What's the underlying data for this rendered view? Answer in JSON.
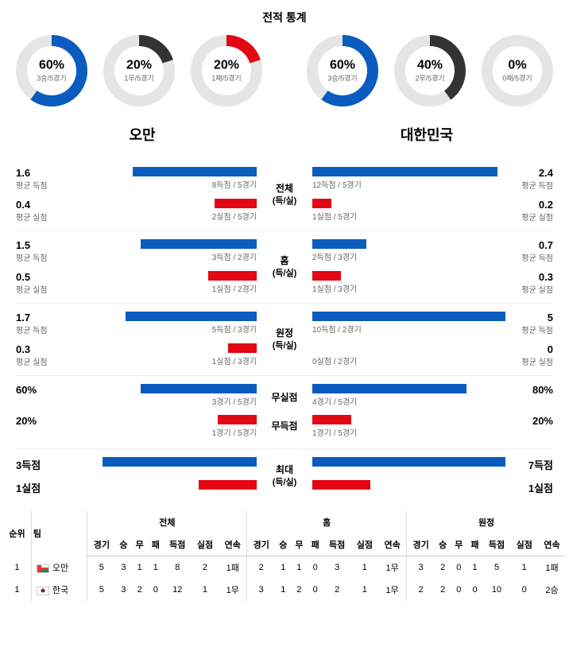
{
  "title": "전적 통계",
  "colors": {
    "win": "#0a5cbf",
    "draw": "#333333",
    "loss": "#e30613",
    "track": "#e5e5e5"
  },
  "donut": {
    "stroke_width": 14,
    "radius": 38
  },
  "left_team": "오만",
  "right_team": "대한민국",
  "left_donuts": [
    {
      "pct": "60%",
      "sub": "3승/5경기",
      "value": 60,
      "color": "#0a5cbf"
    },
    {
      "pct": "20%",
      "sub": "1무/5경기",
      "value": 20,
      "color": "#333333"
    },
    {
      "pct": "20%",
      "sub": "1패/5경기",
      "value": 20,
      "color": "#e30613"
    }
  ],
  "right_donuts": [
    {
      "pct": "60%",
      "sub": "3승/5경기",
      "value": 60,
      "color": "#0a5cbf"
    },
    {
      "pct": "40%",
      "sub": "2무/5경기",
      "value": 40,
      "color": "#333333"
    },
    {
      "pct": "0%",
      "sub": "0패/5경기",
      "value": 0,
      "color": "#e30613"
    }
  ],
  "sections": [
    {
      "mid": [
        "전체",
        "(득/실)"
      ],
      "left": [
        {
          "main": "1.6",
          "label": "평균 득점",
          "caption": "8득점 / 5경기",
          "pct": 64,
          "color": "#0a5cbf"
        },
        {
          "main": "0.4",
          "label": "평균 실점",
          "caption": "2실점 / 5경기",
          "pct": 22,
          "color": "#e30613"
        }
      ],
      "right": [
        {
          "main": "2.4",
          "label": "평균 득점",
          "caption": "12득점 / 5경기",
          "pct": 96,
          "color": "#0a5cbf"
        },
        {
          "main": "0.2",
          "label": "평균 실점",
          "caption": "1실점 / 5경기",
          "pct": 10,
          "color": "#e30613"
        }
      ]
    },
    {
      "mid": [
        "홈",
        "(득/실)"
      ],
      "left": [
        {
          "main": "1.5",
          "label": "평균 득점",
          "caption": "3득점 / 2경기",
          "pct": 60,
          "color": "#0a5cbf"
        },
        {
          "main": "0.5",
          "label": "평균 실점",
          "caption": "1실점 / 2경기",
          "pct": 25,
          "color": "#e30613"
        }
      ],
      "right": [
        {
          "main": "0.7",
          "label": "평균 득점",
          "caption": "2득점 / 3경기",
          "pct": 28,
          "color": "#0a5cbf"
        },
        {
          "main": "0.3",
          "label": "평균 실점",
          "caption": "1실점 / 3경기",
          "pct": 15,
          "color": "#e30613"
        }
      ]
    },
    {
      "mid": [
        "원정",
        "(득/실)"
      ],
      "left": [
        {
          "main": "1.7",
          "label": "평균 득점",
          "caption": "5득점 / 3경기",
          "pct": 68,
          "color": "#0a5cbf"
        },
        {
          "main": "0.3",
          "label": "평균 실점",
          "caption": "1실점 / 3경기",
          "pct": 15,
          "color": "#e30613"
        }
      ],
      "right": [
        {
          "main": "5",
          "label": "평균 득점",
          "caption": "10득점 / 2경기",
          "pct": 100,
          "color": "#0a5cbf"
        },
        {
          "main": "0",
          "label": "평균 실점",
          "caption": "0실점 / 2경기",
          "pct": 0,
          "color": "#e30613"
        }
      ]
    },
    {
      "mid": [
        "무실점",
        "무득점"
      ],
      "mid_per_row": true,
      "left": [
        {
          "main": "60%",
          "label": "",
          "caption": "3경기 / 5경기",
          "pct": 60,
          "color": "#0a5cbf"
        },
        {
          "main": "20%",
          "label": "",
          "caption": "1경기 / 5경기",
          "pct": 20,
          "color": "#e30613"
        }
      ],
      "right": [
        {
          "main": "80%",
          "label": "",
          "caption": "4경기 / 5경기",
          "pct": 80,
          "color": "#0a5cbf"
        },
        {
          "main": "20%",
          "label": "",
          "caption": "1경기 / 5경기",
          "pct": 20,
          "color": "#e30613"
        }
      ]
    },
    {
      "mid": [
        "최대",
        "(득/실)"
      ],
      "left": [
        {
          "main": "3득점",
          "label": "",
          "caption": "",
          "pct": 80,
          "color": "#0a5cbf"
        },
        {
          "main": "1실점",
          "label": "",
          "caption": "",
          "pct": 30,
          "color": "#e30613"
        }
      ],
      "right": [
        {
          "main": "7득점",
          "label": "",
          "caption": "",
          "pct": 100,
          "color": "#0a5cbf"
        },
        {
          "main": "1실점",
          "label": "",
          "caption": "",
          "pct": 30,
          "color": "#e30613"
        }
      ]
    }
  ],
  "table": {
    "header_groups": [
      "전체",
      "홈",
      "원정"
    ],
    "header_row1": [
      "순위",
      "팀"
    ],
    "header_subcols": [
      "경기",
      "승",
      "무",
      "패",
      "득점",
      "실점",
      "연속"
    ],
    "rows": [
      {
        "rank": "1",
        "flag": "oman",
        "team": "오만",
        "all": [
          "5",
          "3",
          "1",
          "1",
          "8",
          "2",
          "1패"
        ],
        "home": [
          "2",
          "1",
          "1",
          "0",
          "3",
          "1",
          "1무"
        ],
        "away": [
          "3",
          "2",
          "0",
          "1",
          "5",
          "1",
          "1패"
        ]
      },
      {
        "rank": "1",
        "flag": "kor",
        "team": "한국",
        "all": [
          "5",
          "3",
          "2",
          "0",
          "12",
          "1",
          "1무"
        ],
        "home": [
          "3",
          "1",
          "2",
          "0",
          "2",
          "1",
          "1무"
        ],
        "away": [
          "2",
          "2",
          "0",
          "0",
          "10",
          "0",
          "2승"
        ]
      }
    ]
  }
}
